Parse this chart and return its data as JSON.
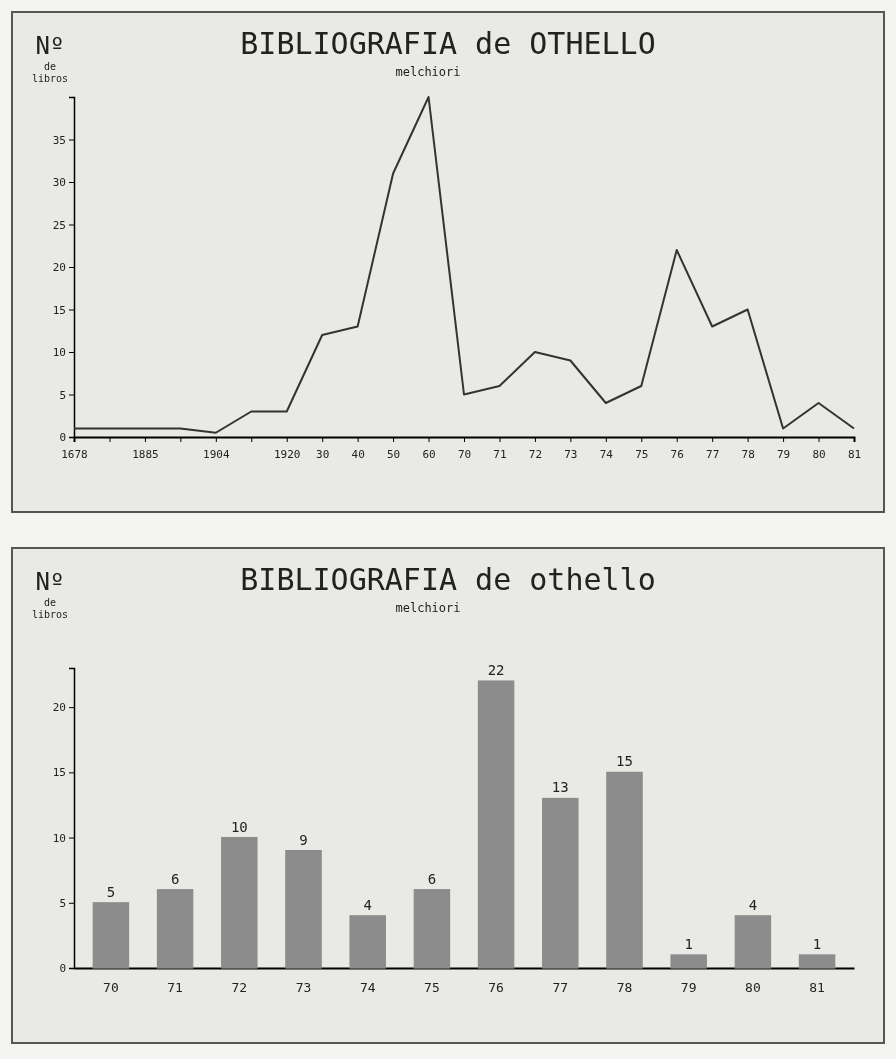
{
  "chart_data": [
    {
      "type": "line",
      "title": "BIBLIOGRAFIA de OTHELLO",
      "subtitle": "melchiori",
      "ylabel": "Nº de libros",
      "categories": [
        "1678",
        null,
        "1885",
        null,
        "1904",
        null,
        "1920",
        "30",
        "40",
        "50",
        "60",
        "70",
        "71",
        "72",
        "73",
        "74",
        "75",
        "76",
        "77",
        "78",
        "79",
        "80",
        "81"
      ],
      "values": [
        1,
        1,
        1,
        1,
        0.5,
        3,
        3,
        12,
        13,
        31,
        40,
        5,
        6,
        10,
        9,
        4,
        6,
        22,
        13,
        15,
        1,
        4,
        1
      ],
      "color": "#333333",
      "ylim": [
        0,
        40
      ],
      "yticks": [
        0,
        5,
        10,
        15,
        20,
        25,
        30,
        35
      ],
      "grid": false,
      "marker": "none",
      "line_style": "solid"
    },
    {
      "type": "bar",
      "title": "BIBLIOGRAFIA de othello",
      "subtitle": "melchiori",
      "ylabel": "Nº de libros",
      "categories": [
        "70",
        "71",
        "72",
        "73",
        "74",
        "75",
        "76",
        "77",
        "78",
        "79",
        "80",
        "81"
      ],
      "values": [
        5,
        6,
        10,
        9,
        4,
        6,
        22,
        13,
        15,
        1,
        4,
        1
      ],
      "color": "#8c8c8c",
      "ylim": [
        0,
        23
      ],
      "yticks": [
        0,
        5,
        10,
        15,
        20
      ],
      "grid": false,
      "data_labels": true
    }
  ]
}
